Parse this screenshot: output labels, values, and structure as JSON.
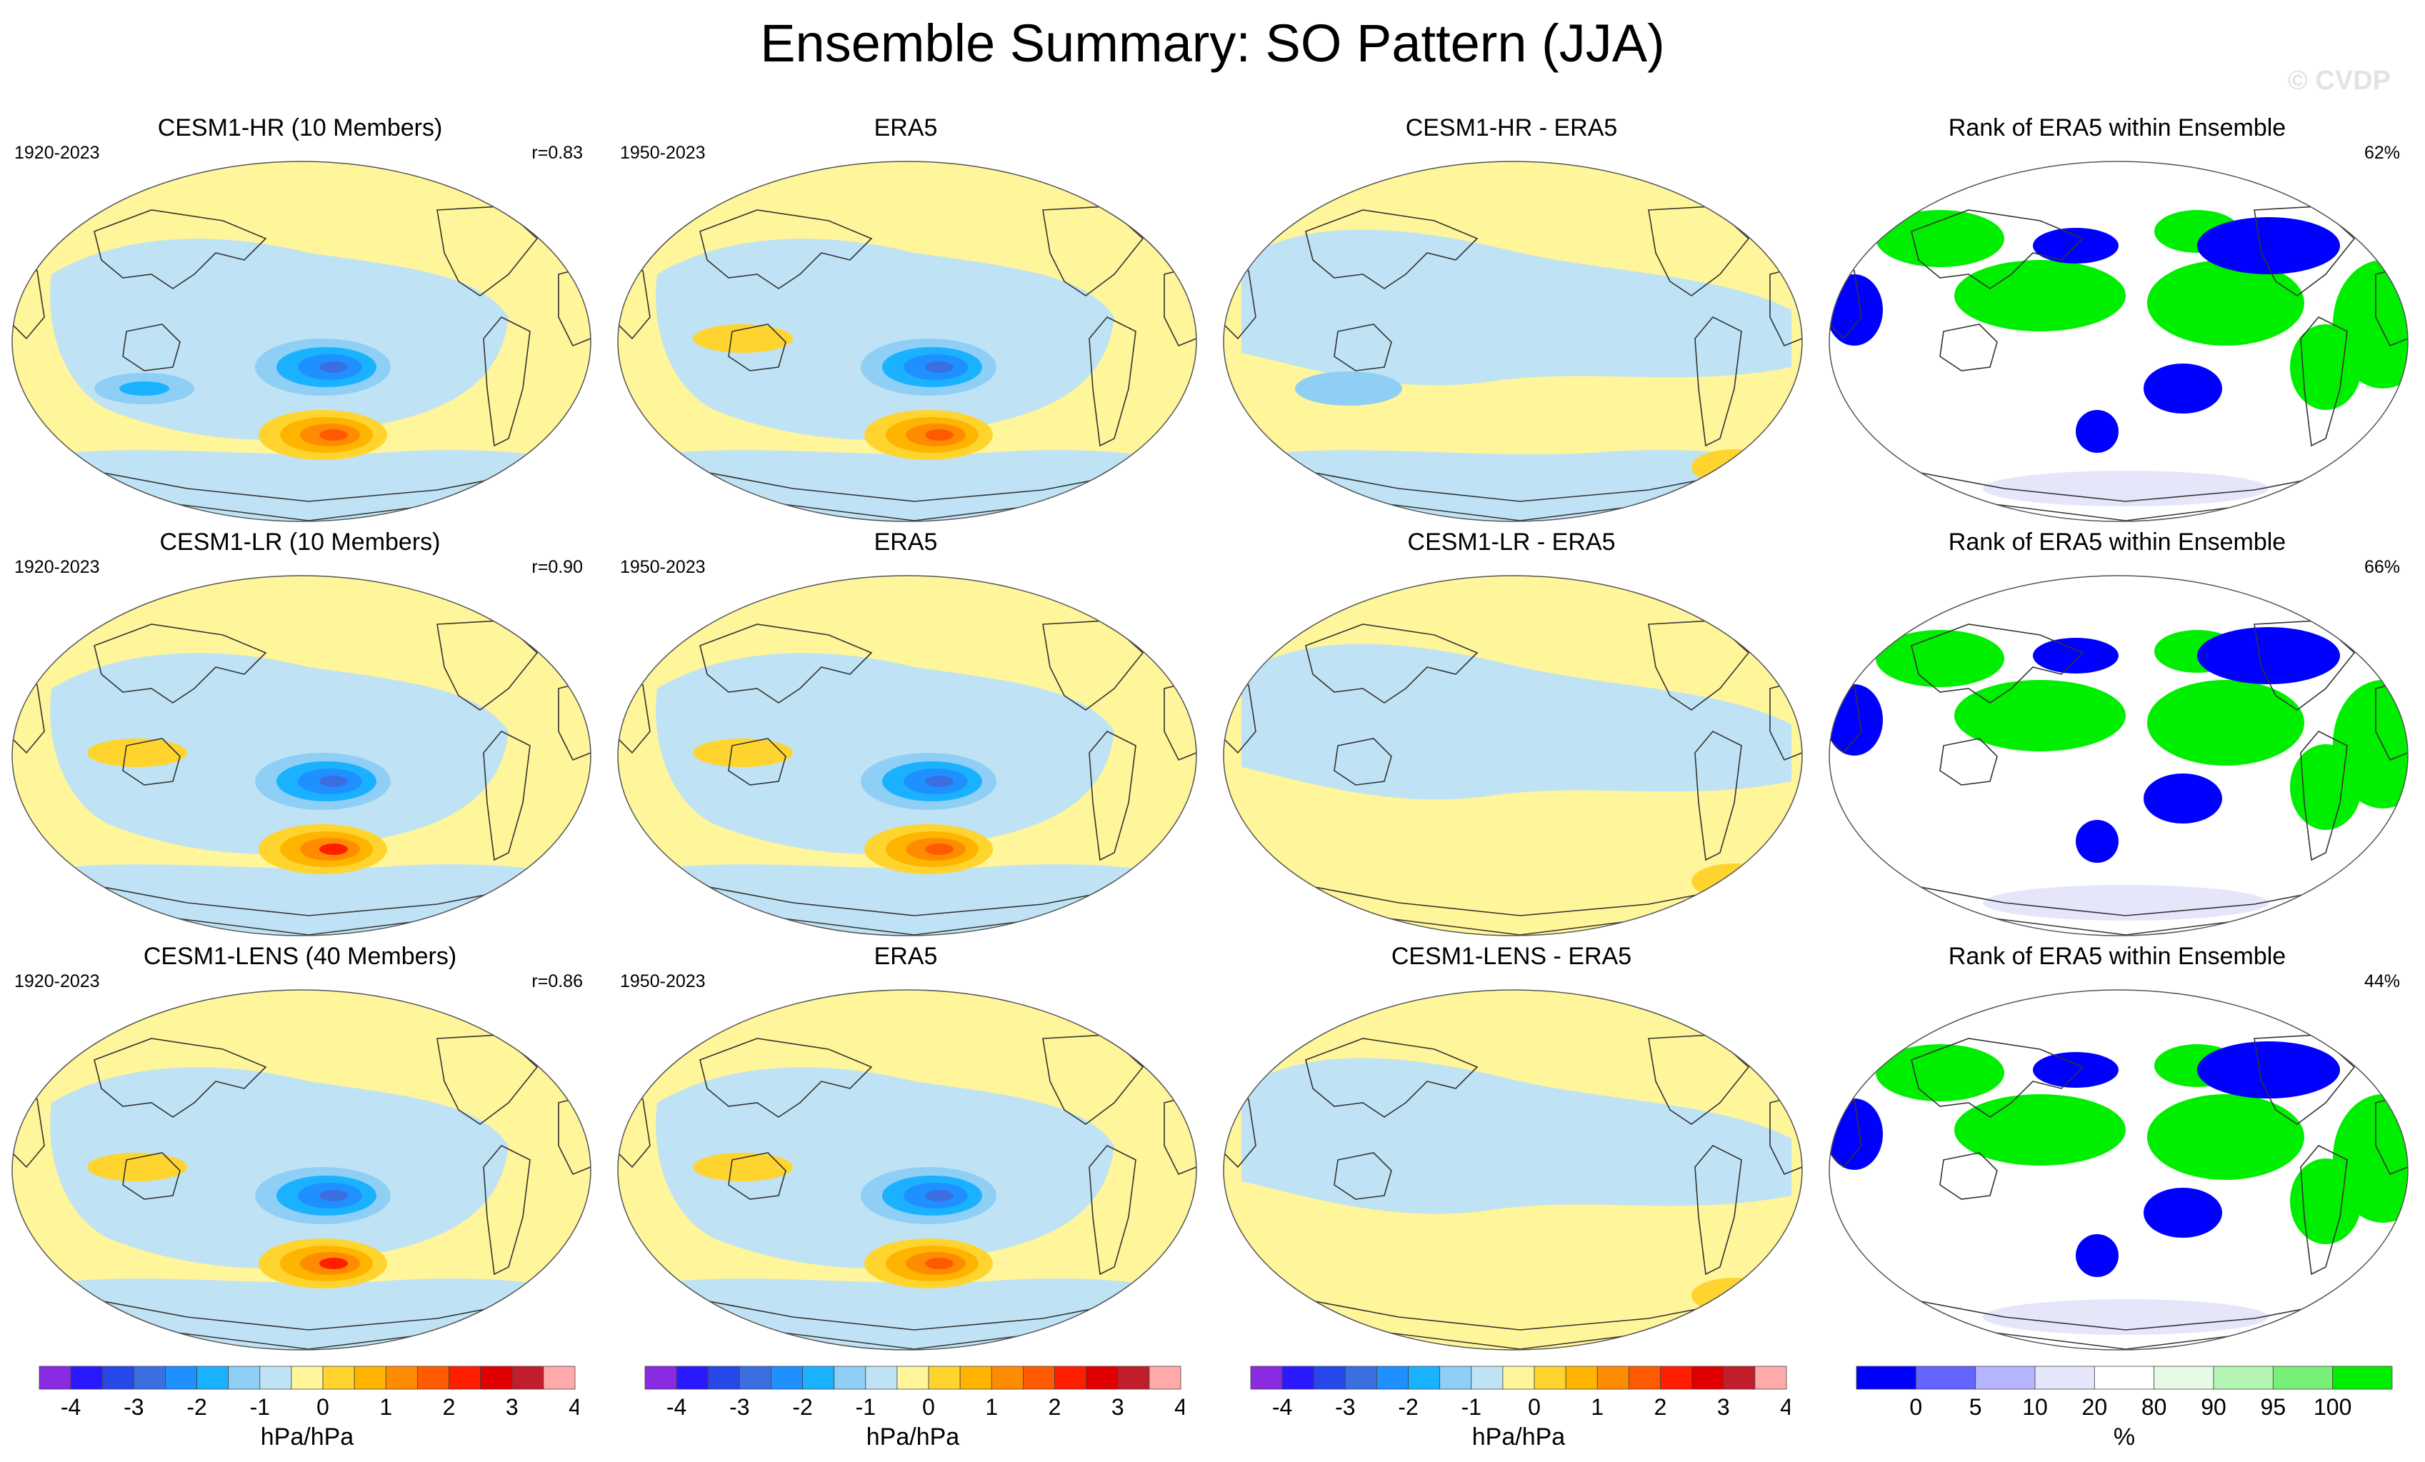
{
  "title": "Ensemble Summary: SO Pattern (JJA)",
  "watermark": "© CVDP",
  "colors": {
    "background": "#ffffff",
    "land_outline": "#333333",
    "diverging_scale": [
      "#8a2be2",
      "#2a19ff",
      "#2747e8",
      "#3b6fe0",
      "#1e90ff",
      "#1ab2ff",
      "#8fcff5",
      "#bfe3f4",
      "#fff59a",
      "#ffd42e",
      "#ffb400",
      "#ff8c00",
      "#ff5a00",
      "#ff1e00",
      "#e00000",
      "#c21d2b",
      "#ffaaaa"
    ],
    "rank_scale": [
      "#0000ff",
      "#6464ff",
      "#b4b4ff",
      "#e6e6fa",
      "#ffffff",
      "#e6fae6",
      "#b4f5b4",
      "#78f078",
      "#00ee00"
    ]
  },
  "rows": [
    {
      "model": {
        "title": "CESM1-HR (10 Members)",
        "years": "1920-2023",
        "stat": "r=0.83"
      },
      "obs": {
        "title": "ERA5",
        "years": "1950-2023"
      },
      "diff": {
        "title": "CESM1-HR - ERA5"
      },
      "rank": {
        "title": "Rank of ERA5 within Ensemble",
        "stat": "62%"
      }
    },
    {
      "model": {
        "title": "CESM1-LR (10 Members)",
        "years": "1920-2023",
        "stat": "r=0.90"
      },
      "obs": {
        "title": "ERA5",
        "years": "1950-2023"
      },
      "diff": {
        "title": "CESM1-LR - ERA5"
      },
      "rank": {
        "title": "Rank of ERA5 within Ensemble",
        "stat": "66%"
      }
    },
    {
      "model": {
        "title": "CESM1-LENS (40 Members)",
        "years": "1920-2023",
        "stat": "r=0.86"
      },
      "obs": {
        "title": "ERA5",
        "years": "1950-2023"
      },
      "diff": {
        "title": "CESM1-LENS - ERA5"
      },
      "rank": {
        "title": "Rank of ERA5 within Ensemble",
        "stat": "44%"
      }
    }
  ],
  "colorbars": [
    {
      "label": "hPa/hPa",
      "ticks": [
        "-4",
        "-3",
        "-2",
        "-1",
        "0",
        "1",
        "2",
        "3",
        "4"
      ]
    },
    {
      "label": "hPa/hPa",
      "ticks": [
        "-4",
        "-3",
        "-2",
        "-1",
        "0",
        "1",
        "2",
        "3",
        "4"
      ]
    },
    {
      "label": "hPa/hPa",
      "ticks": [
        "-4",
        "-3",
        "-2",
        "-1",
        "0",
        "1",
        "2",
        "3",
        "4"
      ]
    },
    {
      "label": "%",
      "ticks": [
        "0",
        "5",
        "10",
        "20",
        "80",
        "90",
        "95",
        "100"
      ]
    }
  ],
  "chart_data": {
    "type": "heatmap",
    "title": "Ensemble Summary: SO Pattern (JJA)",
    "projection": "global map (Robinson-like, Pacific-centered)",
    "units": "hPa/hPa",
    "panels": [
      {
        "row": 1,
        "col": 1,
        "title": "CESM1-HR (10 Members)",
        "period": "1920-2023",
        "pattern_correlation": 0.83,
        "features": [
          {
            "region": "South Pacific (~50S,120W)",
            "sign": "negative",
            "peak_approx": -2.5
          },
          {
            "region": "South Pacific near Antarctic Peninsula (~65S,90W)",
            "sign": "positive",
            "peak_approx": 2.5
          },
          {
            "region": "Southern Indian Ocean",
            "sign": "negative",
            "peak_approx": -1.5
          }
        ]
      },
      {
        "row": 1,
        "col": 2,
        "title": "ERA5",
        "period": "1950-2023",
        "features": [
          {
            "region": "South Pacific",
            "sign": "negative",
            "peak_approx": -2.0
          },
          {
            "region": "Amundsen Sea",
            "sign": "positive",
            "peak_approx": 2.5
          },
          {
            "region": "Australia",
            "sign": "positive",
            "peak_approx": 1.0
          }
        ]
      },
      {
        "row": 1,
        "col": 3,
        "title": "CESM1-HR - ERA5",
        "features": [
          {
            "region": "Southern Indian Ocean",
            "sign": "negative",
            "peak_approx": -1.5
          },
          {
            "region": "Drake Passage",
            "sign": "positive",
            "peak_approx": 1.5
          }
        ]
      },
      {
        "row": 1,
        "col": 4,
        "title": "Rank of ERA5 within Ensemble",
        "pct_within_range": 62
      },
      {
        "row": 2,
        "col": 1,
        "title": "CESM1-LR (10 Members)",
        "period": "1920-2023",
        "pattern_correlation": 0.9,
        "features": [
          {
            "region": "South Pacific",
            "sign": "negative",
            "peak_approx": -2.0
          },
          {
            "region": "Amundsen Sea",
            "sign": "positive",
            "peak_approx": 3.5
          }
        ]
      },
      {
        "row": 2,
        "col": 2,
        "title": "ERA5",
        "period": "1950-2023",
        "features": [
          {
            "region": "South Pacific",
            "sign": "negative",
            "peak_approx": -2.0
          },
          {
            "region": "Amundsen Sea",
            "sign": "positive",
            "peak_approx": 2.5
          }
        ]
      },
      {
        "row": 2,
        "col": 3,
        "title": "CESM1-LR - ERA5",
        "features": [
          {
            "region": "Antarctic coast",
            "sign": "positive",
            "peak_approx": 1.0
          }
        ]
      },
      {
        "row": 2,
        "col": 4,
        "title": "Rank of ERA5 within Ensemble",
        "pct_within_range": 66
      },
      {
        "row": 3,
        "col": 1,
        "title": "CESM1-LENS (40 Members)",
        "period": "1920-2023",
        "pattern_correlation": 0.86,
        "features": [
          {
            "region": "South Pacific",
            "sign": "negative",
            "peak_approx": -2.0
          },
          {
            "region": "Amundsen Sea",
            "sign": "positive",
            "peak_approx": 2.5
          }
        ]
      },
      {
        "row": 3,
        "col": 2,
        "title": "ERA5",
        "period": "1950-2023",
        "features": [
          {
            "region": "South Pacific",
            "sign": "negative",
            "peak_approx": -2.0
          },
          {
            "region": "Amundsen Sea",
            "sign": "positive",
            "peak_approx": 2.5
          }
        ]
      },
      {
        "row": 3,
        "col": 3,
        "title": "CESM1-LENS - ERA5",
        "features": [
          {
            "region": "Antarctic coast",
            "sign": "positive",
            "peak_approx": 1.0
          }
        ]
      },
      {
        "row": 3,
        "col": 4,
        "title": "Rank of ERA5 within Ensemble",
        "pct_within_range": 44
      }
    ],
    "diverging_levels": [
      -4,
      -3.5,
      -3,
      -2.5,
      -2,
      -1.5,
      -1,
      -0.5,
      0,
      0.5,
      1,
      1.5,
      2,
      2.5,
      3,
      3.5,
      4
    ],
    "rank_levels": [
      0,
      5,
      10,
      20,
      80,
      90,
      95,
      100
    ]
  }
}
